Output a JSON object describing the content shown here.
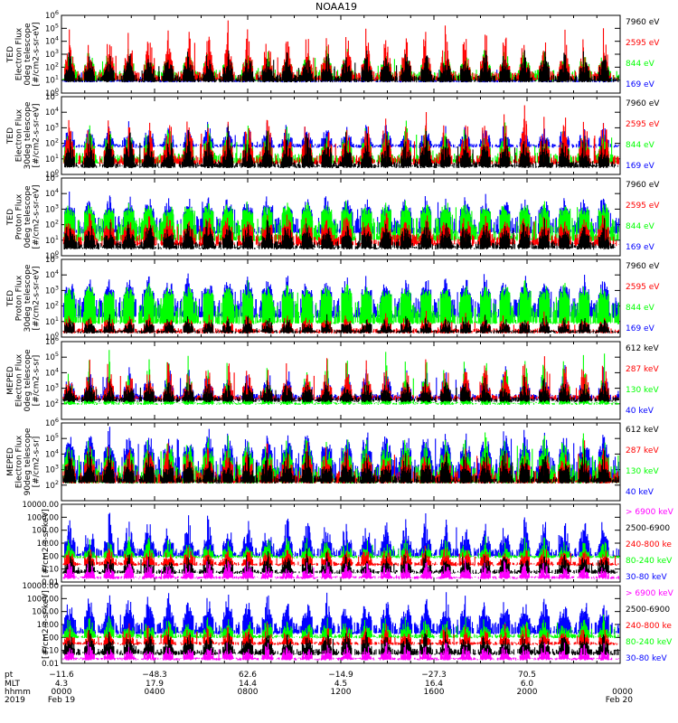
{
  "title": "NOAA19",
  "colors": {
    "black": "#000000",
    "red": "#ff0000",
    "green": "#00ff00",
    "blue": "#0000ff",
    "magenta": "#ff00ff"
  },
  "chart_data": [
    {
      "type": "line",
      "panel": "ted-electron-0deg",
      "ylabel": [
        "TED",
        "Electron Flux",
        "0deg telescope",
        "[#/cm2-s-sr-eV]"
      ],
      "yscale": "log",
      "ylim": [
        1,
        1000000
      ],
      "yticks": [
        {
          "v": 1,
          "base": "10",
          "exp": "0"
        },
        {
          "v": 10,
          "base": "10",
          "exp": "1"
        },
        {
          "v": 100,
          "base": "10",
          "exp": "2"
        },
        {
          "v": 1000,
          "base": "10",
          "exp": "3"
        },
        {
          "v": 10000,
          "base": "10",
          "exp": "4"
        },
        {
          "v": 100000,
          "base": "10",
          "exp": "5"
        },
        {
          "v": 1000000,
          "base": "10",
          "exp": "6"
        }
      ],
      "series": [
        {
          "name": "7960 eV",
          "color": "#000000",
          "baseline": 8,
          "level": 30,
          "peak": 3000,
          "seed": 11
        },
        {
          "name": "2595 eV",
          "color": "#ff0000",
          "baseline": 10,
          "level": 60,
          "peak": 300000,
          "seed": 12
        },
        {
          "name": "844 eV",
          "color": "#00ff00",
          "baseline": 10,
          "level": 80,
          "peak": 3000,
          "seed": 13
        },
        {
          "name": "169 eV",
          "color": "#0000ff",
          "baseline": 8,
          "level": 20,
          "peak": 500,
          "seed": 14
        }
      ]
    },
    {
      "type": "line",
      "panel": "ted-electron-30deg",
      "ylabel": [
        "TED",
        "Electron Flux",
        "30deg telescope",
        "[#/cm2-s-sr-eV]"
      ],
      "yscale": "log",
      "ylim": [
        1,
        100000
      ],
      "yticks": [
        {
          "v": 1,
          "base": "10",
          "exp": "0"
        },
        {
          "v": 10,
          "base": "10",
          "exp": "1"
        },
        {
          "v": 100,
          "base": "10",
          "exp": "2"
        },
        {
          "v": 1000,
          "base": "10",
          "exp": "3"
        },
        {
          "v": 10000,
          "base": "10",
          "exp": "4"
        },
        {
          "v": 100000,
          "base": "10",
          "exp": "5"
        }
      ],
      "series": [
        {
          "name": "7960 eV",
          "color": "#000000",
          "baseline": 3,
          "level": 8,
          "peak": 800,
          "seed": 21
        },
        {
          "name": "2595 eV",
          "color": "#ff0000",
          "baseline": 5,
          "level": 20,
          "peak": 20000,
          "seed": 22
        },
        {
          "name": "844 eV",
          "color": "#00ff00",
          "baseline": 6,
          "level": 30,
          "peak": 2000,
          "seed": 23
        },
        {
          "name": "169 eV",
          "color": "#0000ff",
          "baseline": 60,
          "level": 100,
          "peak": 2000,
          "seed": 24
        }
      ]
    },
    {
      "type": "line",
      "panel": "ted-proton-0deg",
      "ylabel": [
        "TED",
        "Proton Flux",
        "0deg telescope",
        "[#/cm2-s-sr-eV]"
      ],
      "yscale": "log",
      "ylim": [
        1,
        100000
      ],
      "yticks": [
        {
          "v": 1,
          "base": "10",
          "exp": "0"
        },
        {
          "v": 10,
          "base": "10",
          "exp": "1"
        },
        {
          "v": 100,
          "base": "10",
          "exp": "2"
        },
        {
          "v": 1000,
          "base": "10",
          "exp": "3"
        },
        {
          "v": 10000,
          "base": "10",
          "exp": "4"
        },
        {
          "v": 100000,
          "base": "10",
          "exp": "5"
        }
      ],
      "series": [
        {
          "name": "7960 eV",
          "color": "#000000",
          "baseline": 3,
          "level": 10,
          "peak": 200,
          "seed": 31
        },
        {
          "name": "2595 eV",
          "color": "#ff0000",
          "baseline": 5,
          "level": 30,
          "peak": 500,
          "seed": 32
        },
        {
          "name": "844 eV",
          "color": "#00ff00",
          "baseline": 10,
          "level": 400,
          "peak": 3000,
          "seed": 33
        },
        {
          "name": "169 eV",
          "color": "#0000ff",
          "baseline": 30,
          "level": 500,
          "peak": 10000,
          "seed": 34
        }
      ]
    },
    {
      "type": "line",
      "panel": "ted-proton-30deg",
      "ylabel": [
        "TED",
        "Proton Flux",
        "30deg telescope",
        "[#/cm2-s-sr-eV]"
      ],
      "yscale": "log",
      "ylim": [
        1,
        100000
      ],
      "yticks": [
        {
          "v": 1,
          "base": "10",
          "exp": "0"
        },
        {
          "v": 10,
          "base": "10",
          "exp": "1"
        },
        {
          "v": 100,
          "base": "10",
          "exp": "2"
        },
        {
          "v": 1000,
          "base": "10",
          "exp": "3"
        },
        {
          "v": 10000,
          "base": "10",
          "exp": "4"
        },
        {
          "v": 100000,
          "base": "10",
          "exp": "5"
        }
      ],
      "series": [
        {
          "name": "7960 eV",
          "color": "#000000",
          "baseline": 2,
          "level": 3,
          "peak": 20,
          "seed": 41
        },
        {
          "name": "2595 eV",
          "color": "#ff0000",
          "baseline": 2,
          "level": 4,
          "peak": 30,
          "seed": 42
        },
        {
          "name": "844 eV",
          "color": "#00ff00",
          "baseline": 8,
          "level": 300,
          "peak": 3000,
          "seed": 43
        },
        {
          "name": "169 eV",
          "color": "#0000ff",
          "baseline": 20,
          "level": 500,
          "peak": 10000,
          "seed": 44
        }
      ]
    },
    {
      "type": "line",
      "panel": "meped-electron-0deg",
      "ylabel": [
        "MEPED",
        "Electron Flux",
        "0deg telescope",
        "[#/cm2-s-sr]"
      ],
      "yscale": "log",
      "ylim": [
        10,
        1000000
      ],
      "yticks": [
        {
          "v": 100,
          "base": "10",
          "exp": "2"
        },
        {
          "v": 1000,
          "base": "10",
          "exp": "3"
        },
        {
          "v": 10000,
          "base": "10",
          "exp": "4"
        },
        {
          "v": 100000,
          "base": "10",
          "exp": "5"
        },
        {
          "v": 1000000,
          "base": "10",
          "exp": "6"
        }
      ],
      "series": [
        {
          "name": "612 keV",
          "color": "#000000",
          "baseline": 150,
          "level": 300,
          "peak": 3000,
          "seed": 51
        },
        {
          "name": "287 keV",
          "color": "#ff0000",
          "baseline": 200,
          "level": 400,
          "peak": 100000,
          "seed": 52
        },
        {
          "name": "130 keV",
          "color": "#00ff00",
          "baseline": 100,
          "level": 120,
          "peak": 300000,
          "seed": 53
        },
        {
          "name": "40 keV",
          "color": "#0000ff",
          "baseline": 200,
          "level": 500,
          "peak": 30000,
          "seed": 54
        }
      ]
    },
    {
      "type": "line",
      "panel": "meped-electron-90deg",
      "ylabel": [
        "MEPED",
        "Electron Flux",
        "90deg telescope",
        "[#/cm2-s-sr]"
      ],
      "yscale": "log",
      "ylim": [
        10,
        1000000
      ],
      "yticks": [
        {
          "v": 100,
          "base": "10",
          "exp": "2"
        },
        {
          "v": 1000,
          "base": "10",
          "exp": "3"
        },
        {
          "v": 10000,
          "base": "10",
          "exp": "4"
        },
        {
          "v": 100000,
          "base": "10",
          "exp": "5"
        },
        {
          "v": 1000000,
          "base": "10",
          "exp": "6"
        }
      ],
      "series": [
        {
          "name": "612 keV",
          "color": "#000000",
          "baseline": 150,
          "level": 500,
          "peak": 20000,
          "seed": 61
        },
        {
          "name": "287 keV",
          "color": "#ff0000",
          "baseline": 150,
          "level": 1000,
          "peak": 50000,
          "seed": 62
        },
        {
          "name": "130 keV",
          "color": "#00ff00",
          "baseline": 150,
          "level": 3000,
          "peak": 200000,
          "seed": 63
        },
        {
          "name": "40 keV",
          "color": "#0000ff",
          "baseline": 200,
          "level": 10000,
          "peak": 500000,
          "seed": 64
        }
      ]
    },
    {
      "type": "line",
      "panel": "meped-proton-0deg",
      "ylabel": [
        "[#/cm2-s-sr-keV]"
      ],
      "yscale": "log",
      "ylim": [
        0.01,
        10000
      ],
      "yticks": [
        {
          "v": 0.01,
          "label": "0.01"
        },
        {
          "v": 0.1,
          "label": "0.10"
        },
        {
          "v": 1,
          "label": "1.00"
        },
        {
          "v": 10,
          "label": "10.00"
        },
        {
          "v": 100,
          "label": "100.00"
        },
        {
          "v": 1000,
          "label": "1000.00"
        },
        {
          "v": 10000,
          "label": "10000.00"
        }
      ],
      "series": [
        {
          "name": "> 6900 keV",
          "color": "#ff00ff",
          "baseline": 0.02,
          "level": 0.03,
          "peak": 0.5,
          "seed": 71
        },
        {
          "name": "2500-6900",
          "color": "#000000",
          "baseline": 0.05,
          "level": 0.1,
          "peak": 2,
          "seed": 72
        },
        {
          "name": "240-800 ke",
          "color": "#ff0000",
          "baseline": 0.2,
          "level": 0.4,
          "peak": 5,
          "seed": 73
        },
        {
          "name": "80-240 keV",
          "color": "#00ff00",
          "baseline": 0.8,
          "level": 1.2,
          "peak": 30,
          "seed": 74
        },
        {
          "name": "30-80 keV",
          "color": "#0000ff",
          "baseline": 1,
          "level": 5,
          "peak": 3000,
          "seed": 75
        }
      ]
    },
    {
      "type": "line",
      "panel": "meped-proton-90deg",
      "ylabel": [
        "[#/cm2-s-sr-keV]"
      ],
      "yscale": "log",
      "ylim": [
        0.01,
        10000
      ],
      "yticks": [
        {
          "v": 0.01,
          "label": "0.01"
        },
        {
          "v": 0.1,
          "label": "0.10"
        },
        {
          "v": 1,
          "label": "1.00"
        },
        {
          "v": 10,
          "label": "10.00"
        },
        {
          "v": 100,
          "label": "100.00"
        },
        {
          "v": 1000,
          "label": "1000.00"
        },
        {
          "v": 10000,
          "label": "10000.00"
        }
      ],
      "series": [
        {
          "name": "> 6900 keV",
          "color": "#ff00ff",
          "baseline": 0.02,
          "level": 0.03,
          "peak": 0.5,
          "seed": 81
        },
        {
          "name": "2500-6900",
          "color": "#000000",
          "baseline": 0.05,
          "level": 0.15,
          "peak": 3,
          "seed": 82
        },
        {
          "name": "240-800 ke",
          "color": "#ff0000",
          "baseline": 0.3,
          "level": 0.5,
          "peak": 10,
          "seed": 83
        },
        {
          "name": "80-240 keV",
          "color": "#00ff00",
          "baseline": 1,
          "level": 2,
          "peak": 50,
          "seed": 84
        },
        {
          "name": "30-80 keV",
          "color": "#0000ff",
          "baseline": 2,
          "level": 20,
          "peak": 3000,
          "seed": 85
        }
      ]
    }
  ],
  "xaxis": {
    "xlim": [
      0,
      24
    ],
    "row_labels": [
      "pt",
      "MLT",
      "hhmm",
      "2019"
    ],
    "ticks": [
      {
        "x": 0,
        "pt": "−11.6",
        "mlt": "4.3",
        "hhmm": "0000",
        "date": "Feb 19"
      },
      {
        "x": 4,
        "pt": "−48.3",
        "mlt": "17.9",
        "hhmm": "0400",
        "date": ""
      },
      {
        "x": 8,
        "pt": "62.6",
        "mlt": "14.4",
        "hhmm": "0800",
        "date": ""
      },
      {
        "x": 12,
        "pt": "−14.9",
        "mlt": "4.5",
        "hhmm": "1200",
        "date": ""
      },
      {
        "x": 16,
        "pt": "−27.3",
        "mlt": "16.4",
        "hhmm": "1600",
        "date": ""
      },
      {
        "x": 20,
        "pt": "70.5",
        "mlt": "6.0",
        "hhmm": "2000",
        "date": ""
      },
      {
        "x": 24,
        "pt": "",
        "mlt": "",
        "hhmm": "0000",
        "date": "Feb 20"
      }
    ]
  }
}
